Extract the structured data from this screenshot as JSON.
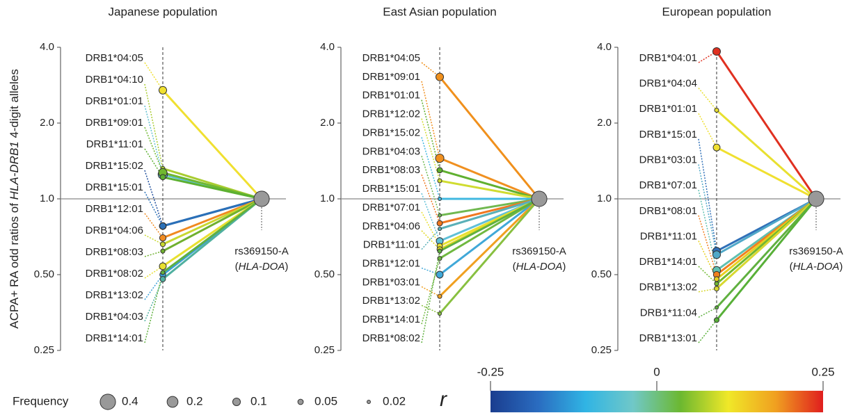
{
  "chart_data": [
    {
      "type": "slope",
      "title": "Japanese population",
      "y_label": [
        "ACPA+ RA odd ratios of ",
        "HLA-DRB1",
        " 4-digit alleles"
      ],
      "log_scale": true,
      "ylim": [
        0.25,
        4
      ],
      "yticks": [
        0.25,
        {
          "value": 0.5,
          "label": "0.50"
        },
        {
          "value": 1,
          "label": "1.0"
        },
        {
          "value": 2,
          "label": "2.0"
        },
        {
          "value": 4,
          "label": "4.0"
        }
      ],
      "hline": 1,
      "categories": [
        "DRB1*04:05",
        "DRB1*04:10",
        "DRB1*01:01",
        "DRB1*09:01",
        "DRB1*11:01",
        "DRB1*15:02",
        "DRB1*15:01",
        "DRB1*12:01",
        "DRB1*04:06",
        "DRB1*08:03",
        "DRB1*08:02",
        "DRB1*13:02",
        "DRB1*04:03",
        "DRB1*14:01"
      ],
      "values": [
        2.7,
        1.32,
        1.25,
        1.27,
        1.22,
        0.78,
        0.78,
        0.7,
        0.66,
        0.62,
        0.54,
        0.5,
        0.48,
        0.51
      ],
      "sizes": [
        0.1,
        0.03,
        0.15,
        0.12,
        0.05,
        0.08,
        0.07,
        0.07,
        0.04,
        0.03,
        0.08,
        0.06,
        0.05,
        0.03
      ],
      "colors": [
        "#f0e030",
        "#a8cc30",
        "#60c0d0",
        "#70b830",
        "#5cb030",
        "#1f4e9c",
        "#2a70b8",
        "#f08a20",
        "#c8d830",
        "#70b030",
        "#e8e030",
        "#3aa0d8",
        "#50b0a0",
        "#60b040"
      ],
      "snp": {
        "label": "rs369150-A",
        "gene": [
          "(",
          "HLA-DOA",
          ")"
        ],
        "value": 1,
        "size": 0.4,
        "color": "#999999"
      }
    },
    {
      "type": "slope",
      "title": "East Asian population",
      "log_scale": true,
      "ylim": [
        0.25,
        4
      ],
      "yticks": [
        0.25,
        {
          "value": 0.5,
          "label": "0.50"
        },
        {
          "value": 1,
          "label": "1.0"
        },
        {
          "value": 2,
          "label": "2.0"
        },
        {
          "value": 4,
          "label": "4.0"
        }
      ],
      "hline": 1,
      "categories": [
        "DRB1*04:05",
        "DRB1*09:01",
        "DRB1*01:01",
        "DRB1*12:02",
        "DRB1*15:02",
        "DRB1*04:03",
        "DRB1*08:03",
        "DRB1*15:01",
        "DRB1*07:01",
        "DRB1*04:06",
        "DRB1*11:01",
        "DRB1*12:01",
        "DRB1*03:01",
        "DRB1*13:02",
        "DRB1*14:01",
        "DRB1*08:02"
      ],
      "values": [
        3.05,
        1.45,
        1.3,
        1.18,
        1.0,
        0.86,
        0.8,
        0.68,
        0.65,
        0.63,
        0.76,
        0.5,
        0.41,
        0.35,
        0.58,
        0.62
      ],
      "sizes": [
        0.1,
        0.12,
        0.05,
        0.03,
        0.02,
        0.02,
        0.05,
        0.08,
        0.05,
        0.05,
        0.02,
        0.08,
        0.03,
        0.02,
        0.03,
        0.03
      ],
      "colors": [
        "#f0901c",
        "#f09020",
        "#60b030",
        "#d0dc30",
        "#40b8e0",
        "#70b850",
        "#f07820",
        "#60c0d8",
        "#e8e030",
        "#e0d820",
        "#5ab0b8",
        "#40a8d8",
        "#f0a020",
        "#88c040",
        "#70b840",
        "#60b040"
      ],
      "snp": {
        "label": "rs369150-A",
        "gene": [
          "(",
          "HLA-DOA",
          ")"
        ],
        "value": 1,
        "size": 0.4,
        "color": "#999999"
      }
    },
    {
      "type": "slope",
      "title": "European population",
      "log_scale": true,
      "ylim": [
        0.25,
        4
      ],
      "yticks": [
        0.25,
        {
          "value": 0.5,
          "label": "0.50"
        },
        {
          "value": 1,
          "label": "1.0"
        },
        {
          "value": 2,
          "label": "2.0"
        },
        {
          "value": 4,
          "label": "4.0"
        }
      ],
      "hline": 1,
      "categories": [
        "DRB1*04:01",
        "DRB1*04:04",
        "DRB1*01:01",
        "DRB1*15:01",
        "DRB1*03:01",
        "DRB1*07:01",
        "DRB1*08:01",
        "DRB1*11:01",
        "DRB1*14:01",
        "DRB1*13:02",
        "DRB1*11:04",
        "DRB1*13:01"
      ],
      "values": [
        3.85,
        2.25,
        1.6,
        0.62,
        0.6,
        0.52,
        0.5,
        0.48,
        0.46,
        0.44,
        0.37,
        0.33
      ],
      "sizes": [
        0.1,
        0.03,
        0.08,
        0.1,
        0.1,
        0.1,
        0.07,
        0.04,
        0.03,
        0.04,
        0.02,
        0.04
      ],
      "colors": [
        "#e03020",
        "#e8e030",
        "#f0e030",
        "#3070b8",
        "#50a8c8",
        "#60c0b0",
        "#f08020",
        "#e8d020",
        "#70b830",
        "#d8d830",
        "#60b040",
        "#58b038"
      ],
      "snp": {
        "label": "rs369150-A",
        "gene": [
          "(",
          "HLA-DOA",
          ")"
        ],
        "value": 1,
        "size": 0.4,
        "color": "#999999"
      }
    }
  ],
  "legend": {
    "size_title": "Frequency",
    "sizes": [
      0.4,
      0.2,
      0.1,
      0.05,
      0.02
    ],
    "size_color": "#999999",
    "color_title": "r",
    "color_ticks": [
      -0.25,
      0,
      0.25
    ],
    "color_lim": [
      -0.25,
      0.25
    ],
    "colors": [
      "#1a3d8f",
      "#2a6cc0",
      "#30b4e4",
      "#70c8c8",
      "#6cb830",
      "#f0e828",
      "#f0a020",
      "#e01e1e"
    ]
  }
}
